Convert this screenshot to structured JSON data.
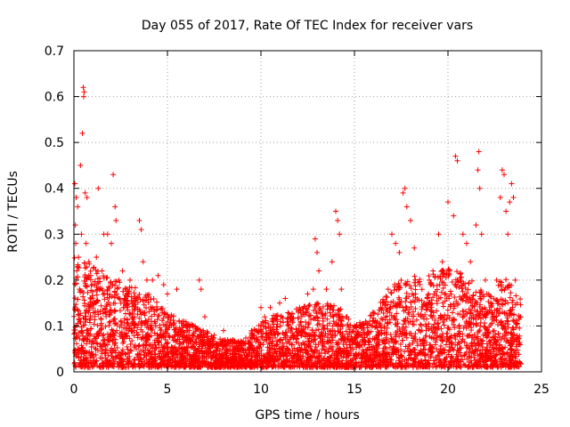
{
  "chart_data": {
    "type": "scatter",
    "title": "Day 055 of 2017, Rate Of TEC Index for receiver vars",
    "xlabel": "GPS time / hours",
    "ylabel": "ROTI / TECUs",
    "xlim": [
      0,
      25
    ],
    "ylim": [
      0,
      0.7
    ],
    "xticks": [
      0,
      5,
      10,
      15,
      20,
      25
    ],
    "yticks": [
      0,
      0.1,
      0.2,
      0.3,
      0.4,
      0.5,
      0.6,
      0.7
    ],
    "grid": true,
    "marker": "+",
    "color": "#ff0000",
    "series": [
      {
        "name": "",
        "points": [
          [
            0.05,
            0.41
          ],
          [
            0.08,
            0.32
          ],
          [
            0.1,
            0.28
          ],
          [
            0.12,
            0.38
          ],
          [
            0.15,
            0.22
          ],
          [
            0.2,
            0.36
          ],
          [
            0.25,
            0.25
          ],
          [
            0.3,
            0.18
          ],
          [
            0.35,
            0.45
          ],
          [
            0.4,
            0.3
          ],
          [
            0.45,
            0.52
          ],
          [
            0.5,
            0.62
          ],
          [
            0.52,
            0.6
          ],
          [
            0.55,
            0.61
          ],
          [
            0.6,
            0.39
          ],
          [
            0.65,
            0.28
          ],
          [
            0.7,
            0.38
          ],
          [
            0.8,
            0.24
          ],
          [
            0.9,
            0.21
          ],
          [
            1.0,
            0.19
          ],
          [
            1.2,
            0.25
          ],
          [
            1.3,
            0.4
          ],
          [
            1.5,
            0.22
          ],
          [
            1.6,
            0.3
          ],
          [
            1.8,
            0.3
          ],
          [
            2.0,
            0.28
          ],
          [
            2.1,
            0.43
          ],
          [
            2.2,
            0.36
          ],
          [
            2.25,
            0.33
          ],
          [
            2.4,
            0.2
          ],
          [
            2.6,
            0.22
          ],
          [
            2.8,
            0.18
          ],
          [
            3.0,
            0.2
          ],
          [
            3.2,
            0.16
          ],
          [
            3.5,
            0.33
          ],
          [
            3.6,
            0.31
          ],
          [
            3.7,
            0.24
          ],
          [
            3.9,
            0.2
          ],
          [
            4.2,
            0.2
          ],
          [
            4.5,
            0.21
          ],
          [
            4.8,
            0.19
          ],
          [
            5.0,
            0.17
          ],
          [
            5.2,
            0.12
          ],
          [
            5.5,
            0.18
          ],
          [
            5.8,
            0.11
          ],
          [
            6.2,
            0.1
          ],
          [
            6.7,
            0.2
          ],
          [
            6.8,
            0.18
          ],
          [
            7.0,
            0.12
          ],
          [
            7.5,
            0.08
          ],
          [
            8.0,
            0.09
          ],
          [
            8.5,
            0.07
          ],
          [
            9.0,
            0.06
          ],
          [
            9.5,
            0.08
          ],
          [
            10.0,
            0.14
          ],
          [
            10.2,
            0.12
          ],
          [
            10.5,
            0.14
          ],
          [
            11.0,
            0.15
          ],
          [
            11.3,
            0.16
          ],
          [
            11.6,
            0.12
          ],
          [
            12.0,
            0.13
          ],
          [
            12.5,
            0.17
          ],
          [
            12.8,
            0.18
          ],
          [
            12.9,
            0.29
          ],
          [
            13.0,
            0.26
          ],
          [
            13.1,
            0.22
          ],
          [
            13.5,
            0.18
          ],
          [
            13.8,
            0.24
          ],
          [
            14.0,
            0.35
          ],
          [
            14.1,
            0.33
          ],
          [
            14.2,
            0.3
          ],
          [
            14.3,
            0.18
          ],
          [
            14.6,
            0.12
          ],
          [
            15.0,
            0.1
          ],
          [
            15.3,
            0.08
          ],
          [
            15.6,
            0.11
          ],
          [
            16.0,
            0.13
          ],
          [
            16.4,
            0.14
          ],
          [
            16.8,
            0.18
          ],
          [
            17.0,
            0.3
          ],
          [
            17.2,
            0.28
          ],
          [
            17.4,
            0.26
          ],
          [
            17.6,
            0.39
          ],
          [
            17.7,
            0.4
          ],
          [
            17.8,
            0.36
          ],
          [
            18.0,
            0.33
          ],
          [
            18.2,
            0.27
          ],
          [
            18.5,
            0.19
          ],
          [
            19.0,
            0.2
          ],
          [
            19.2,
            0.22
          ],
          [
            19.5,
            0.3
          ],
          [
            19.7,
            0.24
          ],
          [
            20.0,
            0.37
          ],
          [
            20.3,
            0.34
          ],
          [
            20.4,
            0.47
          ],
          [
            20.5,
            0.46
          ],
          [
            20.8,
            0.3
          ],
          [
            21.0,
            0.28
          ],
          [
            21.2,
            0.24
          ],
          [
            21.5,
            0.32
          ],
          [
            21.6,
            0.44
          ],
          [
            21.65,
            0.48
          ],
          [
            21.7,
            0.4
          ],
          [
            21.8,
            0.3
          ],
          [
            22.0,
            0.2
          ],
          [
            22.3,
            0.15
          ],
          [
            22.6,
            0.2
          ],
          [
            22.8,
            0.38
          ],
          [
            22.9,
            0.44
          ],
          [
            23.0,
            0.43
          ],
          [
            23.1,
            0.35
          ],
          [
            23.2,
            0.3
          ],
          [
            23.3,
            0.37
          ],
          [
            23.4,
            0.41
          ],
          [
            23.5,
            0.38
          ],
          [
            23.6,
            0.2
          ],
          [
            23.7,
            0.15
          ],
          [
            23.8,
            0.06
          ]
        ],
        "density": {
          "x_range": [
            0,
            23.9
          ],
          "samples_per_hour": 180,
          "envelope": [
            [
              0,
              0.25
            ],
            [
              1,
              0.22
            ],
            [
              2,
              0.2
            ],
            [
              3,
              0.18
            ],
            [
              4,
              0.16
            ],
            [
              5,
              0.12
            ],
            [
              6,
              0.1
            ],
            [
              7,
              0.08
            ],
            [
              8,
              0.06
            ],
            [
              9,
              0.06
            ],
            [
              10,
              0.1
            ],
            [
              11,
              0.12
            ],
            [
              12,
              0.13
            ],
            [
              13,
              0.14
            ],
            [
              14,
              0.14
            ],
            [
              15,
              0.09
            ],
            [
              16,
              0.12
            ],
            [
              17,
              0.18
            ],
            [
              18,
              0.2
            ],
            [
              19,
              0.2
            ],
            [
              20,
              0.22
            ],
            [
              21,
              0.2
            ],
            [
              22,
              0.16
            ],
            [
              23,
              0.2
            ],
            [
              23.9,
              0.15
            ]
          ]
        }
      }
    ]
  }
}
